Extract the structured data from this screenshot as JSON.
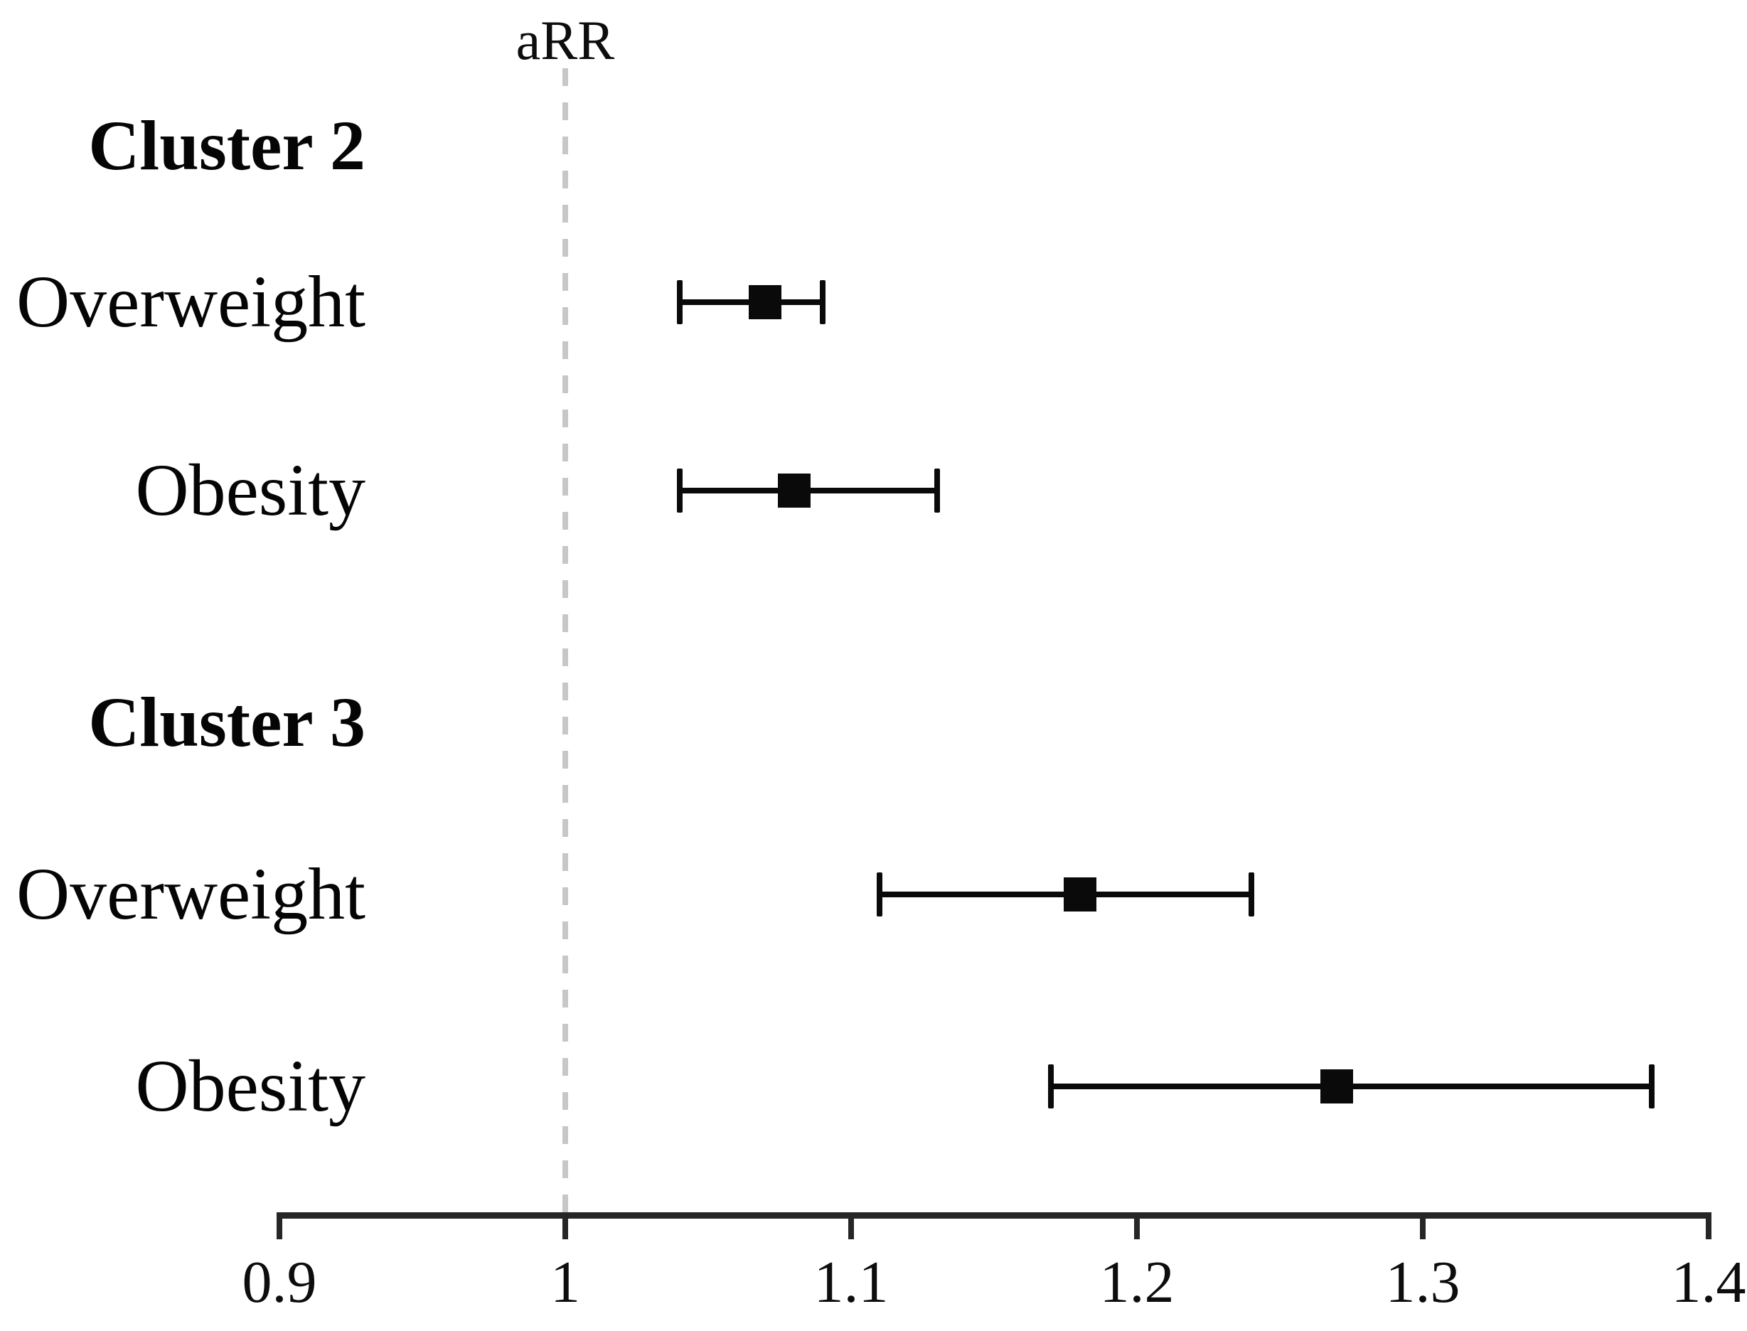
{
  "figure": {
    "background_color": "#ffffff",
    "text_color": "#000000",
    "marker_color": "#0a0a0a",
    "axis_color": "#262626",
    "reference_line_color": "#c7c7c7"
  },
  "chart_data": {
    "type": "scatter",
    "subtype": "forest-plot",
    "title": "",
    "xlabel": "aRR",
    "ylabel": "",
    "xlim": [
      0.9,
      1.4
    ],
    "grid": false,
    "reference_line": 1,
    "x_ticks": [
      0.9,
      1,
      1.1,
      1.2,
      1.3,
      1.4
    ],
    "x_tick_labels": [
      "0.9",
      "1",
      "1.1",
      "1.2",
      "1.3",
      "1.4"
    ],
    "groups": [
      {
        "label": "Cluster 2",
        "rows": [
          {
            "label": "Overweight",
            "estimate": 1.07,
            "ci_low": 1.04,
            "ci_high": 1.09
          },
          {
            "label": "Obesity",
            "estimate": 1.08,
            "ci_low": 1.04,
            "ci_high": 1.13
          }
        ]
      },
      {
        "label": "Cluster 3",
        "rows": [
          {
            "label": "Overweight",
            "estimate": 1.18,
            "ci_low": 1.11,
            "ci_high": 1.24
          },
          {
            "label": "Obesity",
            "estimate": 1.27,
            "ci_low": 1.17,
            "ci_high": 1.38
          }
        ]
      }
    ]
  }
}
